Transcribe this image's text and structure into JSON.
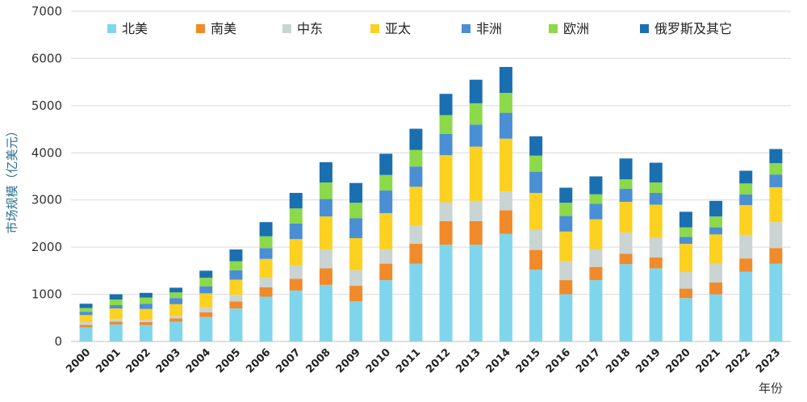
{
  "chart_data": {
    "type": "bar",
    "stacked": true,
    "title": "",
    "ylabel": "市场规模（亿美元）",
    "xlabel": "年份",
    "ylim": [
      0,
      7000
    ],
    "yticks": [
      0,
      1000,
      2000,
      3000,
      4000,
      5000,
      6000,
      7000
    ],
    "grid": true,
    "legend_position": "top",
    "categories": [
      "2000",
      "2001",
      "2002",
      "2003",
      "2004",
      "2005",
      "2006",
      "2007",
      "2008",
      "2009",
      "2010",
      "2011",
      "2012",
      "2013",
      "2014",
      "2015",
      "2016",
      "2017",
      "2018",
      "2019",
      "2020",
      "2021",
      "2022",
      "2023"
    ],
    "series": [
      {
        "name": "北美",
        "color": "#7fd6ec",
        "values": [
          300,
          360,
          350,
          420,
          520,
          700,
          950,
          1080,
          1200,
          850,
          1300,
          1650,
          2050,
          2050,
          2280,
          1520,
          1000,
          1300,
          1640,
          1550,
          920,
          1000,
          1480,
          1650
        ]
      },
      {
        "name": "南美",
        "color": "#f08a2a",
        "values": [
          50,
          60,
          60,
          70,
          100,
          150,
          200,
          250,
          350,
          330,
          350,
          420,
          500,
          500,
          500,
          420,
          300,
          280,
          220,
          230,
          200,
          250,
          280,
          330
        ]
      },
      {
        "name": "中东",
        "color": "#c9d4d3",
        "values": [
          60,
          60,
          50,
          50,
          100,
          140,
          200,
          280,
          400,
          330,
          300,
          380,
          400,
          430,
          400,
          430,
          400,
          380,
          450,
          420,
          350,
          400,
          500,
          550
        ]
      },
      {
        "name": "亚太",
        "color": "#fcd11f",
        "values": [
          150,
          220,
          230,
          250,
          300,
          320,
          400,
          560,
          700,
          680,
          770,
          830,
          1000,
          1150,
          1120,
          780,
          630,
          630,
          650,
          700,
          600,
          620,
          630,
          740
        ]
      },
      {
        "name": "非洲",
        "color": "#4a8fd4",
        "values": [
          70,
          70,
          110,
          130,
          150,
          200,
          230,
          330,
          370,
          420,
          480,
          430,
          450,
          470,
          550,
          450,
          330,
          330,
          280,
          250,
          150,
          150,
          230,
          270
        ]
      },
      {
        "name": "欧洲",
        "color": "#8cd94a",
        "values": [
          80,
          120,
          130,
          120,
          180,
          190,
          250,
          320,
          350,
          330,
          330,
          350,
          400,
          450,
          420,
          340,
          280,
          200,
          200,
          220,
          200,
          230,
          230,
          240
        ]
      },
      {
        "name": "俄罗斯及其它",
        "color": "#1a6fb0",
        "values": [
          90,
          110,
          100,
          100,
          150,
          250,
          300,
          330,
          430,
          420,
          450,
          450,
          450,
          500,
          550,
          410,
          320,
          380,
          440,
          420,
          330,
          330,
          270,
          300
        ]
      }
    ]
  }
}
